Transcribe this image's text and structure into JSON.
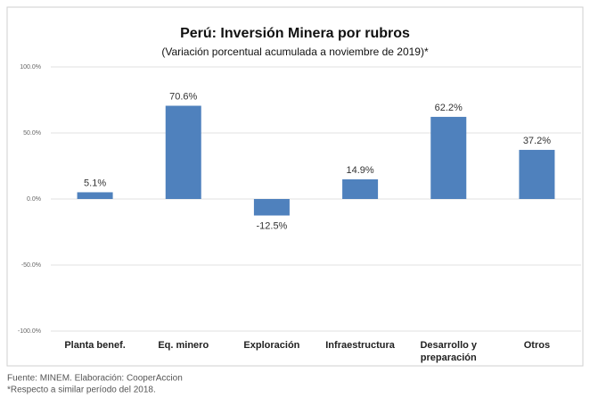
{
  "chart_data": {
    "type": "bar",
    "title": "Perú: Inversión Minera por rubros",
    "subtitle": "(Variación porcentual acumulada a noviembre de 2019)*",
    "categories": [
      "Planta benef.",
      "Eq. minero",
      "Exploración",
      "Infraestructura",
      "Desarrollo y preparación",
      "Otros"
    ],
    "values": [
      5.1,
      70.6,
      -12.5,
      14.9,
      62.2,
      37.2
    ],
    "value_labels": [
      "5.1%",
      "70.6%",
      "-12.5%",
      "14.9%",
      "62.2%",
      "37.2%"
    ],
    "color": "#4f81bd",
    "ylim": [
      -100,
      100
    ],
    "yticks": [
      {
        "value": -100,
        "label": "-100.0%"
      },
      {
        "value": -50,
        "label": "-50.0%"
      },
      {
        "value": 0,
        "label": "0.0%"
      },
      {
        "value": 50,
        "label": "50.0%"
      },
      {
        "value": 100,
        "label": "100.0%"
      }
    ],
    "grid": true,
    "notes": [
      "Fuente: MINEM. Elaboración: CooperAccion",
      "*Respecto a similar período del 2018."
    ]
  }
}
